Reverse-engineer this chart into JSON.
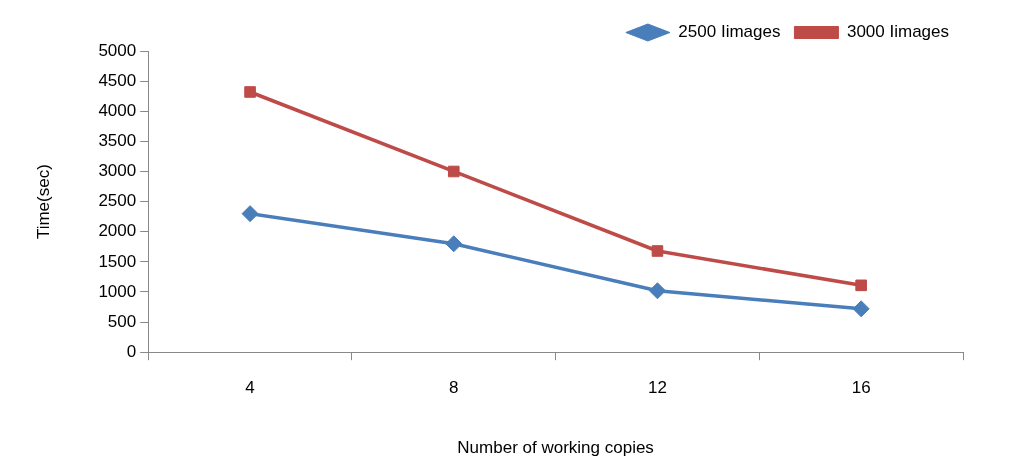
{
  "chart_data": {
    "type": "line",
    "xlabel": "Number of working copies",
    "ylabel": "Time(sec)",
    "categories": [
      "4",
      "8",
      "12",
      "16"
    ],
    "series": [
      {
        "name": "2500 Iimages",
        "color": "#4a7ebb",
        "values": [
          2300,
          1800,
          1020,
          720
        ],
        "marker": "diamond"
      },
      {
        "name": "3000 Iimages",
        "color": "#be4b48",
        "values": [
          4320,
          3000,
          1680,
          1110
        ],
        "marker": "square"
      }
    ],
    "ylim": [
      0,
      5000
    ],
    "yticks": [
      0,
      500,
      1000,
      1500,
      2000,
      2500,
      3000,
      3500,
      4000,
      4500,
      5000
    ],
    "grid": false,
    "legend": "top right",
    "line_style": "solid"
  }
}
